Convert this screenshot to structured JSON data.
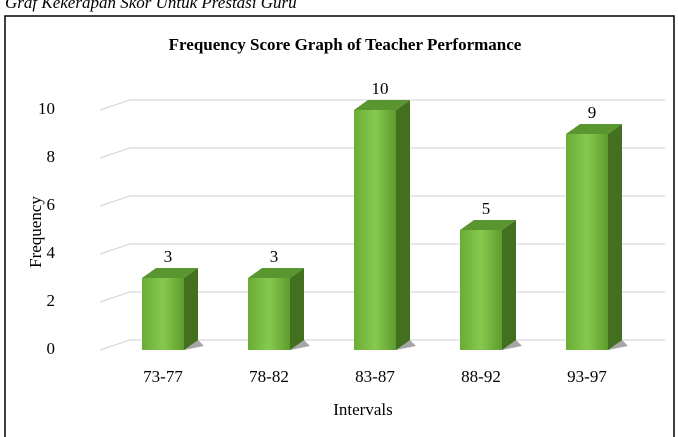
{
  "caption": "Graf Kekerapan Skor Untuk Prestasi Guru",
  "chart_data": {
    "type": "bar",
    "title": "Frequency Score Graph of Teacher Performance",
    "categories": [
      "73-77",
      "78-82",
      "83-87",
      "88-92",
      "93-97"
    ],
    "values": [
      3,
      3,
      10,
      5,
      9
    ],
    "color": "#6fb43a",
    "ylim": [
      0,
      10
    ],
    "yticks": [
      0,
      2,
      4,
      6,
      8,
      10
    ],
    "grid": true,
    "xlabel": "Intervals",
    "ylabel": "Frequency"
  }
}
